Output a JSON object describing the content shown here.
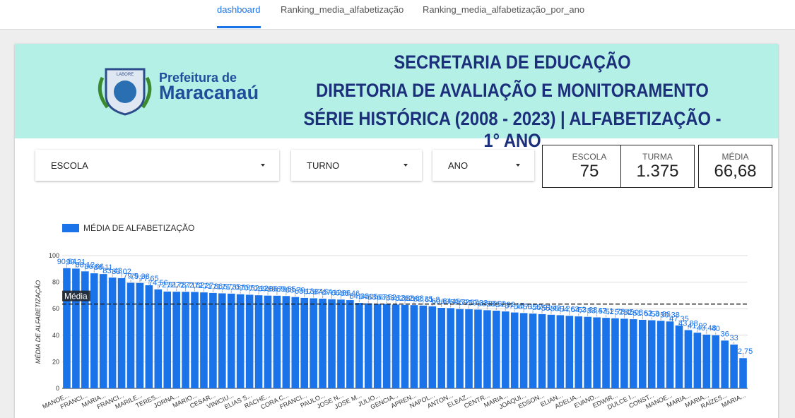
{
  "tabs": [
    "dashboard",
    "Ranking_media_alfabetização",
    "Ranking_media_alfabetização_por_ano"
  ],
  "header": {
    "logo_badge": "LABORE",
    "logo_line1": "Prefeitura de",
    "logo_line2": "Maracanaú",
    "title_lines": [
      "SECRETARIA DE EDUCAÇÃO",
      "DIRETORIA DE AVALIAÇÃO E MONITORAMENTO",
      "SÉRIE HISTÓRICA (2008 - 2023) | ALFABETIZAÇÃO - 1° ANO"
    ]
  },
  "filters": [
    "ESCOLA",
    "TURNO",
    "ANO"
  ],
  "scorecards": [
    {
      "label": "ESCOLA",
      "value": "75"
    },
    {
      "label": "TURMA",
      "value": "1.375"
    },
    {
      "label": "MÉDIA",
      "value": "66,68"
    }
  ],
  "chart_data": {
    "type": "bar",
    "y_label": "MÉDIA DE ALFABETIZAÇÃO",
    "legend": "top-left",
    "grid": true,
    "ylim": [
      0,
      100
    ],
    "yticks": [
      0,
      20,
      40,
      60,
      80,
      100
    ],
    "mean_line": {
      "label": "Média",
      "value": 63.5
    },
    "categories": [
      "MANOE...",
      null,
      "FRANCI...",
      null,
      "MARIA...",
      null,
      "FRANCI...",
      null,
      "MARILE...",
      null,
      "TERES...",
      null,
      "JORNA...",
      null,
      "MARIO...",
      null,
      "CESAR...",
      null,
      "VINICIU...",
      null,
      "ELIAS S...",
      null,
      "RACHE...",
      null,
      "CORA C...",
      null,
      "FRANCI...",
      null,
      "PAULO...",
      null,
      "JOSE N...",
      null,
      "JOSE M...",
      null,
      "JULIO...",
      null,
      "GENCIA...",
      null,
      "APREN...",
      null,
      "NAPOL...",
      null,
      "ANTON...",
      null,
      "ELEAZ...",
      null,
      "CENTR...",
      null,
      "MARIA...",
      null,
      "JOAQUI...",
      null,
      "EDSON...",
      null,
      "ELIAN...",
      null,
      "ADELIA...",
      null,
      "EVAND...",
      null,
      "EDWIR...",
      null,
      "DULCE I...",
      null,
      "CONST...",
      null,
      "MANOE...",
      null,
      "MARIA...",
      null,
      "MARIA...",
      null,
      "RAÍZES...",
      null,
      "MARIA..."
    ],
    "series": [
      {
        "name": "MÉDIA DE ALFABETIZAÇÃO",
        "color": "#1a73e8",
        "values": [
          90.54,
          90.21,
          88.12,
          86.66,
          86.11,
          83.43,
          83.02,
          79.5,
          79.38,
          77.65,
          74.56,
          72.91,
          72.78,
          72.71,
          72.62,
          72.27,
          71.86,
          71.57,
          71.35,
          70.89,
          70.52,
          70.12,
          69.86,
          69.79,
          69.55,
          68.79,
          68.13,
          67.84,
          67.54,
          67.12,
          66.86,
          66.46,
          64.33,
          64.05,
          63.67,
          63.52,
          63.13,
          62.88,
          62.68,
          62.35,
          61.8,
          60.64,
          60.45,
          59.72,
          59.57,
          59.33,
          58.86,
          58.52,
          57.92,
          57.15,
          56.71,
          56.32,
          55.91,
          55.43,
          55.12,
          54.63,
          54.2,
          53.88,
          53.47,
          53.1,
          52.78,
          52.45,
          52.08,
          51.62,
          51.3,
          50.86,
          50.38,
          47.35,
          43.88,
          41.92,
          40.48,
          40,
          36,
          33,
          22.75
        ],
        "value_labels": [
          "90,54",
          "90,21",
          "88,12",
          "86,66",
          "86,11",
          "83,43",
          "83,02",
          "79,5",
          "79,38",
          "77,65",
          "74,56",
          "72,91",
          "72,78",
          "72,71",
          "72,62",
          "72,27",
          "71,86",
          "71,57",
          "71,35",
          "70,89",
          "70,52",
          "70,12",
          "69,86",
          "69,79",
          "69,55",
          "68,79",
          "68,13",
          "67,84",
          "67,54",
          "67,12",
          "66,86",
          "66,46",
          "64,33",
          "64,05",
          "63,67",
          "63,52",
          "63,13",
          "62,88",
          "62,68",
          "62,35",
          "61,8",
          "60,64",
          "60,45",
          "59,72",
          "59,57",
          "59,33",
          "58,86",
          "58,52",
          "57,92",
          "57,15",
          "56,71",
          "56,32",
          "55,91",
          "55,43",
          "55,12",
          "54,63",
          "54,2",
          "53,88",
          "53,47",
          "53,1",
          "52,78",
          "52,45",
          "52,08",
          "51,62",
          "51,3",
          "50,86",
          "50,38",
          "47,35",
          "43,88",
          "41,92",
          "40,48",
          "40",
          "36",
          "33",
          "22,75"
        ]
      }
    ]
  }
}
